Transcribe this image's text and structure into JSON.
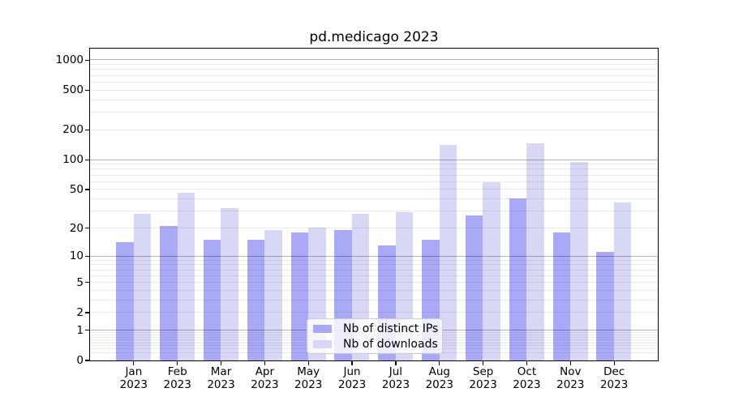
{
  "chart_data": {
    "type": "bar",
    "title": "pd.medicago 2023",
    "categories": [
      "Jan",
      "Feb",
      "Mar",
      "Apr",
      "May",
      "Jun",
      "Jul",
      "Aug",
      "Sep",
      "Oct",
      "Nov",
      "Dec"
    ],
    "year": "2023",
    "series": [
      {
        "name": "Nb of distinct IPs",
        "color": "#a9a9f8",
        "values": [
          14,
          21,
          15,
          15,
          18,
          19,
          13,
          15,
          27,
          40,
          18,
          11
        ]
      },
      {
        "name": "Nb of downloads",
        "color": "#d8d8f6",
        "values": [
          28,
          46,
          32,
          19,
          20,
          28,
          29,
          140,
          59,
          145,
          95,
          37
        ]
      }
    ],
    "yscale": "log1p",
    "ylim": [
      0,
      1302
    ],
    "ytick_labels": [
      0,
      1,
      2,
      5,
      10,
      20,
      50,
      100,
      200,
      500,
      1000
    ],
    "grid": "on",
    "grid_major": [
      1,
      10,
      100,
      1000
    ],
    "grid_minor": [
      0.2,
      0.3,
      0.4,
      0.5,
      0.6,
      0.7,
      0.8,
      0.9,
      2,
      3,
      4,
      5,
      6,
      7,
      8,
      9,
      20,
      30,
      40,
      50,
      60,
      70,
      80,
      90,
      200,
      300,
      400,
      500,
      600,
      700,
      800,
      900
    ],
    "legend_position": "lower-center"
  },
  "colors": {
    "grid_major": "rgba(0,0,0,0.29)",
    "grid_minor": "rgba(0,0,0,0.075)",
    "spine": "#000000",
    "text": "#000000",
    "legend_border": "#cccccc",
    "legend_bg": "rgba(255,255,255,0.8)"
  }
}
